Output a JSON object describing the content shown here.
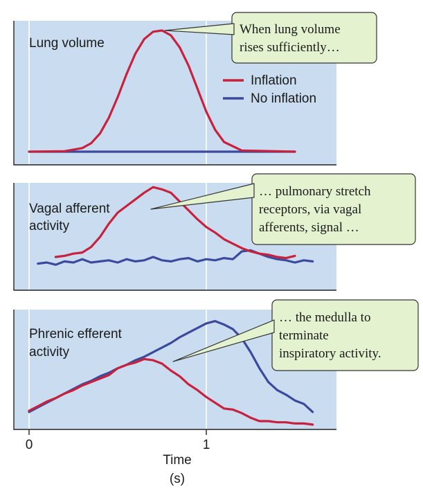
{
  "colors": {
    "inflation": "#c8213d",
    "no_inflation": "#3b4a9c",
    "panel_bg": "#c9dcf0",
    "callout_bg": "#e4f2d0"
  },
  "chart_data": {
    "type": "line",
    "title": "",
    "legend": {
      "placement": "top-right",
      "entries": [
        "Inflation",
        "No inflation"
      ]
    },
    "xaxis": {
      "label_line1": "Time",
      "label_line2": "(s)",
      "ticks": [
        0,
        1
      ],
      "tick_labels": [
        "0",
        "1"
      ],
      "xlim": [
        -0.1,
        1.75
      ]
    },
    "grid": "vertical lines at x=0 and x=1",
    "panels": [
      {
        "label_lines": [
          "Lung volume"
        ],
        "ylim": [
          0,
          1.0
        ],
        "callout": [
          "When lung volume",
          "rises sufficiently…"
        ],
        "series": [
          {
            "name": "Inflation",
            "color": "#c8213d",
            "x": [
              0,
              0.2,
              0.3,
              0.35,
              0.4,
              0.45,
              0.5,
              0.55,
              0.6,
              0.65,
              0.7,
              0.75,
              0.8,
              0.85,
              0.9,
              0.95,
              1.0,
              1.05,
              1.1,
              1.2,
              1.5
            ],
            "y": [
              0,
              0.004,
              0.03,
              0.07,
              0.15,
              0.28,
              0.45,
              0.64,
              0.81,
              0.93,
              0.99,
              1.0,
              0.96,
              0.86,
              0.71,
              0.52,
              0.33,
              0.18,
              0.08,
              0.01,
              0
            ]
          },
          {
            "name": "No inflation",
            "color": "#3b4a9c",
            "x": [
              0,
              1.5
            ],
            "y": [
              0,
              0
            ]
          }
        ]
      },
      {
        "label_lines": [
          "Vagal afferent",
          "activity"
        ],
        "ylim": [
          0,
          1.0
        ],
        "callout": [
          "… pulmonary stretch",
          "receptors, via vagal",
          "afferents, signal …"
        ],
        "series": [
          {
            "name": "Inflation",
            "color": "#c8213d",
            "x": [
              0.15,
              0.2,
              0.25,
              0.3,
              0.35,
              0.4,
              0.45,
              0.5,
              0.55,
              0.6,
              0.65,
              0.7,
              0.75,
              0.8,
              0.85,
              0.9,
              0.95,
              1.0,
              1.05,
              1.1,
              1.15,
              1.2,
              1.25,
              1.3,
              1.35,
              1.4,
              1.45,
              1.5
            ],
            "y": [
              0.3,
              0.31,
              0.33,
              0.34,
              0.39,
              0.48,
              0.6,
              0.7,
              0.76,
              0.82,
              0.88,
              0.93,
              0.91,
              0.88,
              0.8,
              0.72,
              0.64,
              0.57,
              0.52,
              0.46,
              0.42,
              0.38,
              0.35,
              0.33,
              0.32,
              0.3,
              0.29,
              0.31
            ]
          },
          {
            "name": "No inflation",
            "color": "#3b4a9c",
            "x": [
              0.05,
              0.1,
              0.15,
              0.2,
              0.25,
              0.3,
              0.35,
              0.4,
              0.45,
              0.5,
              0.55,
              0.6,
              0.65,
              0.7,
              0.75,
              0.8,
              0.85,
              0.9,
              0.95,
              1.0,
              1.05,
              1.1,
              1.15,
              1.2,
              1.25,
              1.3,
              1.35,
              1.4,
              1.45,
              1.5,
              1.55,
              1.6
            ],
            "y": [
              0.24,
              0.25,
              0.23,
              0.26,
              0.25,
              0.28,
              0.25,
              0.26,
              0.27,
              0.25,
              0.28,
              0.26,
              0.27,
              0.3,
              0.27,
              0.26,
              0.28,
              0.29,
              0.26,
              0.28,
              0.27,
              0.29,
              0.28,
              0.35,
              0.36,
              0.33,
              0.3,
              0.28,
              0.27,
              0.25,
              0.27,
              0.26
            ]
          }
        ]
      },
      {
        "label_lines": [
          "Phrenic efferent",
          "activity"
        ],
        "ylim": [
          0,
          1.0
        ],
        "callout": [
          "… the medulla to",
          "terminate",
          "inspiratory activity."
        ],
        "series": [
          {
            "name": "Inflation",
            "color": "#c8213d",
            "x": [
              0,
              0.05,
              0.1,
              0.15,
              0.2,
              0.25,
              0.3,
              0.35,
              0.4,
              0.45,
              0.5,
              0.55,
              0.6,
              0.65,
              0.7,
              0.75,
              0.8,
              0.85,
              0.9,
              0.95,
              1.0,
              1.05,
              1.1,
              1.15,
              1.2,
              1.25,
              1.3,
              1.35,
              1.4,
              1.45,
              1.5,
              1.55,
              1.6
            ],
            "y": [
              0.15,
              0.19,
              0.23,
              0.26,
              0.3,
              0.33,
              0.37,
              0.4,
              0.43,
              0.46,
              0.52,
              0.55,
              0.57,
              0.6,
              0.59,
              0.56,
              0.5,
              0.45,
              0.38,
              0.33,
              0.27,
              0.22,
              0.17,
              0.16,
              0.13,
              0.09,
              0.06,
              0.06,
              0.05,
              0.05,
              0.04,
              0.04,
              0.03
            ]
          },
          {
            "name": "No inflation",
            "color": "#3b4a9c",
            "x": [
              0,
              0.05,
              0.1,
              0.15,
              0.2,
              0.25,
              0.3,
              0.35,
              0.4,
              0.45,
              0.5,
              0.55,
              0.6,
              0.65,
              0.7,
              0.75,
              0.8,
              0.85,
              0.9,
              0.95,
              1.0,
              1.05,
              1.1,
              1.15,
              1.2,
              1.25,
              1.3,
              1.35,
              1.4,
              1.45,
              1.5,
              1.55,
              1.6
            ],
            "y": [
              0.14,
              0.18,
              0.22,
              0.26,
              0.3,
              0.34,
              0.38,
              0.41,
              0.45,
              0.48,
              0.52,
              0.55,
              0.59,
              0.62,
              0.66,
              0.7,
              0.74,
              0.79,
              0.83,
              0.87,
              0.91,
              0.93,
              0.9,
              0.86,
              0.78,
              0.66,
              0.52,
              0.4,
              0.33,
              0.29,
              0.24,
              0.21,
              0.14
            ]
          }
        ]
      }
    ]
  }
}
